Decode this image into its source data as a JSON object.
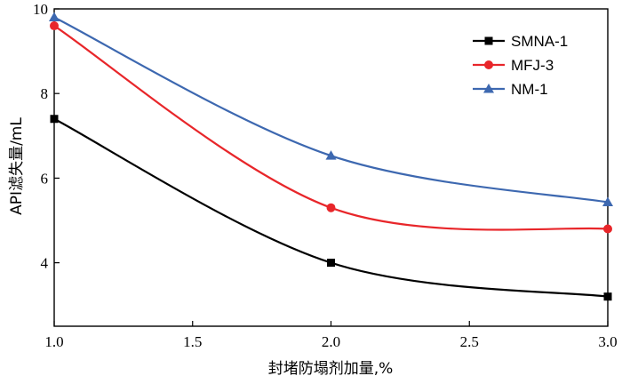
{
  "chart_data": {
    "type": "line",
    "xlabel": "封堵防塌剂加量,%",
    "ylabel": "API滤失量/mL",
    "xlim": [
      1.0,
      3.0
    ],
    "ylim": [
      2.5,
      10.0
    ],
    "x_ticks": [
      1.0,
      1.5,
      2.0,
      2.5,
      3.0
    ],
    "x_tick_labels": [
      "1.0",
      "1.5",
      "2.0",
      "2.5",
      "3.0"
    ],
    "y_ticks": [
      4,
      6,
      8,
      10
    ],
    "y_tick_labels": [
      "4",
      "6",
      "8",
      "10"
    ],
    "grid": false,
    "legend_position": "top-right",
    "x": [
      1.0,
      2.0,
      3.0
    ],
    "series": [
      {
        "name": "SMNA-1",
        "values": [
          7.4,
          4.0,
          3.2
        ],
        "color": "#000000",
        "marker": "square"
      },
      {
        "name": "MFJ-3",
        "values": [
          9.6,
          5.3,
          4.8
        ],
        "color": "#e8262a",
        "marker": "circle"
      },
      {
        "name": "NM-1",
        "values": [
          9.8,
          6.53,
          5.43
        ],
        "color": "#3d68b0",
        "marker": "triangle"
      }
    ]
  }
}
